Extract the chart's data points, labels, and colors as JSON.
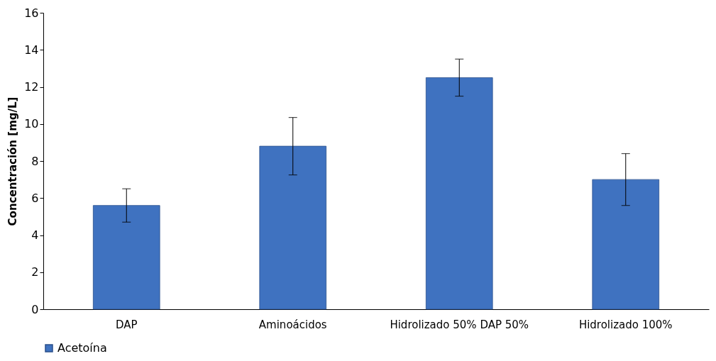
{
  "chart_data": {
    "type": "bar",
    "ylabel": "Concentración [mg/L]",
    "categories": [
      "DAP",
      "Aminoácidos",
      "Hidrolizado 50% DAP 50%",
      "Hidrolizado 100%"
    ],
    "series": [
      {
        "name": "Acetoína",
        "color": "#3f72c0",
        "values": [
          5.6,
          8.8,
          12.5,
          7.0
        ],
        "errors": [
          0.9,
          1.55,
          1.0,
          1.4
        ]
      }
    ],
    "ylim": [
      0,
      16
    ],
    "yticks": [
      0,
      2,
      4,
      6,
      8,
      10,
      12,
      14,
      16
    ],
    "grid": false,
    "legend": "bottom"
  }
}
